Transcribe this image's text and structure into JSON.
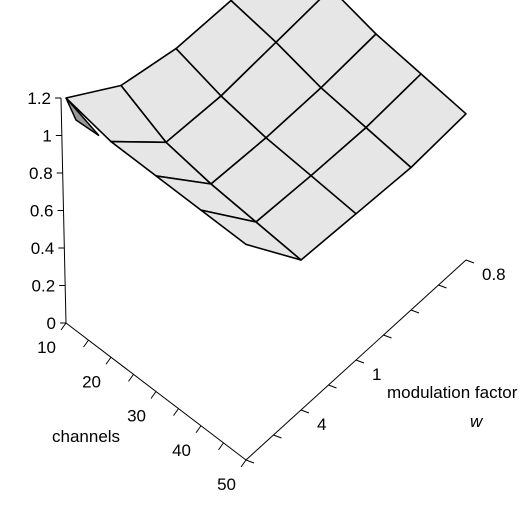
{
  "chart_data": {
    "type": "surface",
    "title": "",
    "zlabel": "",
    "zlim": [
      0,
      1.2
    ],
    "z_ticks": [
      "0",
      "0.2",
      "0.4",
      "0.6",
      "0.8",
      "1",
      "1.2"
    ],
    "x_axis": {
      "label": "channels",
      "tick_labels": [
        "10",
        "20",
        "30",
        "40",
        "50"
      ],
      "values": [
        10,
        20,
        30,
        40,
        50
      ]
    },
    "y_axis": {
      "label_text": "modulation factor ",
      "label_var": "w",
      "tick_labels": [
        "0.8",
        "1",
        "4"
      ],
      "values": [
        0.8,
        1,
        2,
        4,
        8
      ]
    },
    "z": [
      [
        1.2,
        1.0,
        0.93,
        0.92,
        0.95
      ],
      [
        1.15,
        0.88,
        0.86,
        0.88,
        0.9
      ],
      [
        1.15,
        0.84,
        0.82,
        0.82,
        0.84
      ],
      [
        1.15,
        0.82,
        0.8,
        0.79,
        0.81
      ],
      [
        1.15,
        0.8,
        0.78,
        0.76,
        0.78
      ]
    ],
    "surface_color": "#e6e6e6",
    "shadow_color": "#999999"
  }
}
